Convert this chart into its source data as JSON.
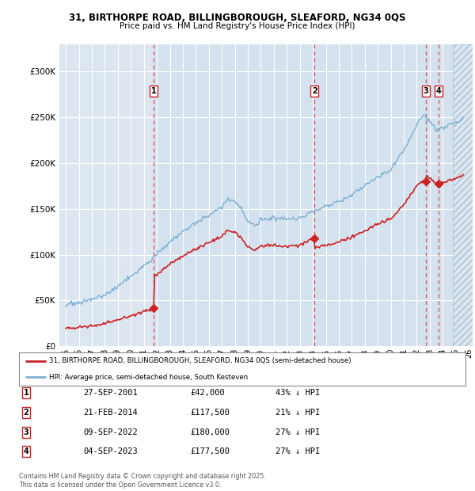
{
  "title1": "31, BIRTHORPE ROAD, BILLINGBOROUGH, SLEAFORD, NG34 0QS",
  "title2": "Price paid vs. HM Land Registry's House Price Index (HPI)",
  "ylim": [
    0,
    330000
  ],
  "yticks": [
    0,
    50000,
    100000,
    150000,
    200000,
    250000,
    300000
  ],
  "ytick_labels": [
    "£0",
    "£50K",
    "£100K",
    "£150K",
    "£200K",
    "£250K",
    "£300K"
  ],
  "xlim_start": 1994.5,
  "xlim_end": 2026.3,
  "background_color": "#FFFFFF",
  "plot_bg_color": "#DCE6F1",
  "shade_bg_color": "#C8D8EC",
  "grid_color": "#FFFFFF",
  "legend_label_red": "31, BIRTHORPE ROAD, BILLINGBOROUGH, SLEAFORD, NG34 0QS (semi-detached house)",
  "legend_label_blue": "HPI: Average price, semi-detached house, South Kesteven",
  "footer": "Contains HM Land Registry data © Crown copyright and database right 2025.\nThis data is licensed under the Open Government Licence v3.0.",
  "transactions": [
    {
      "num": 1,
      "date": "27-SEP-2001",
      "price": "£42,000",
      "hpi": "43% ↓ HPI",
      "year": 2001.75
    },
    {
      "num": 2,
      "date": "21-FEB-2014",
      "price": "£117,500",
      "hpi": "21% ↓ HPI",
      "year": 2014.13
    },
    {
      "num": 3,
      "date": "09-SEP-2022",
      "price": "£180,000",
      "hpi": "27% ↓ HPI",
      "year": 2022.69
    },
    {
      "num": 4,
      "date": "04-SEP-2023",
      "price": "£177,500",
      "hpi": "27% ↓ HPI",
      "year": 2023.67
    }
  ],
  "trans_prices": [
    42000,
    117500,
    180000,
    177500
  ],
  "red_line_color": "#CC2222",
  "blue_line_color": "#7BAFD4",
  "dashed_line_color": "#DD3333",
  "hatch_start": 2024.75
}
